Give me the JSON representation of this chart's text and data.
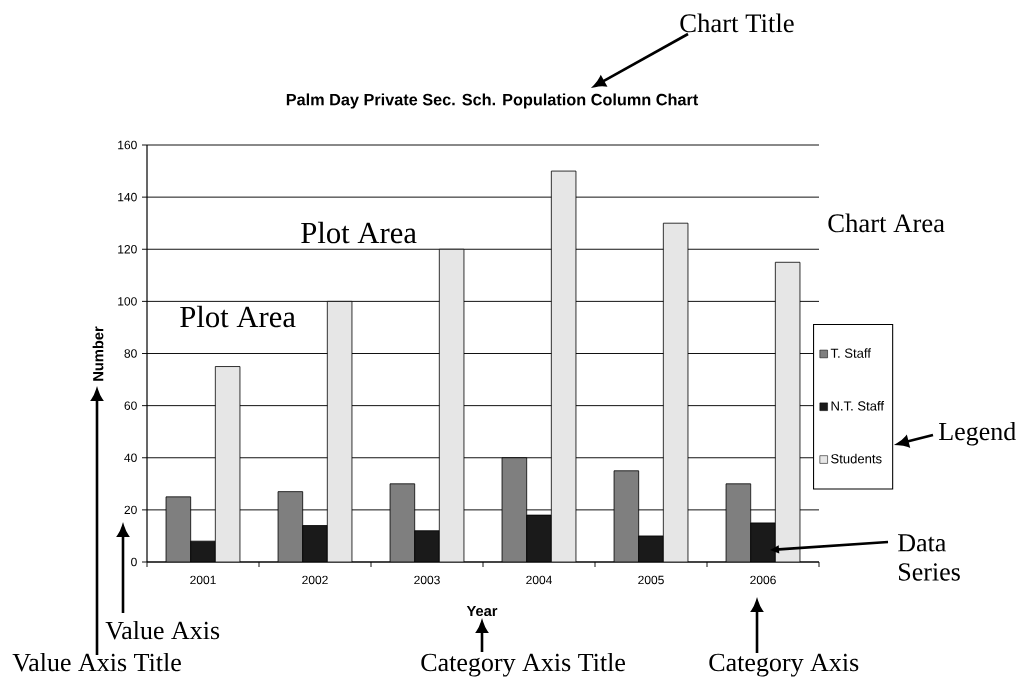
{
  "chart_data": {
    "type": "bar",
    "title": "Palm Day Private Sec. Sch. Population Column Chart",
    "xlabel": "Year",
    "ylabel": "Number",
    "categories": [
      "2001",
      "2002",
      "2003",
      "2004",
      "2005",
      "2006"
    ],
    "series": [
      {
        "name": "T. Staff",
        "color": "#7f7f7f",
        "values": [
          25,
          27,
          30,
          40,
          35,
          30
        ]
      },
      {
        "name": "N.T. Staff",
        "color": "#1a1a1a",
        "values": [
          8,
          14,
          12,
          18,
          10,
          15
        ]
      },
      {
        "name": "Students",
        "color": "#e6e6e6",
        "values": [
          75,
          100,
          120,
          150,
          130,
          115
        ]
      }
    ],
    "ylim": [
      0,
      160
    ],
    "yticks": [
      0,
      20,
      40,
      60,
      80,
      100,
      120,
      140,
      160
    ],
    "grid": "y",
    "legend": "right",
    "annotations": [
      "Chart Title",
      "Plot Area",
      "Plot Area",
      "Chart Area",
      "Legend",
      "Data Series",
      "Value Axis",
      "Value Axis Title",
      "Category Axis Title",
      "Category Axis"
    ]
  }
}
